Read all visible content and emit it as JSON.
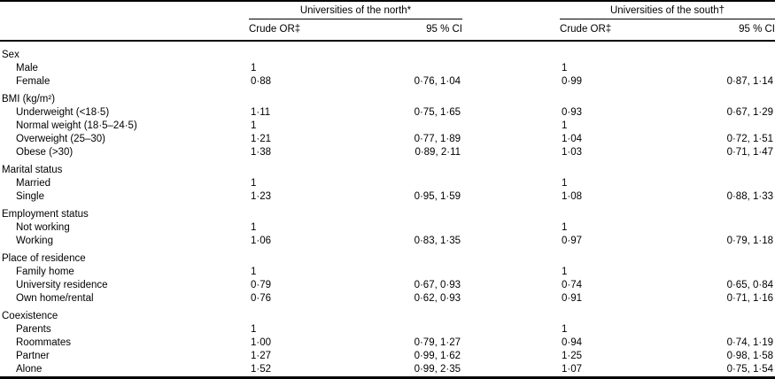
{
  "table": {
    "groups": [
      {
        "label": "Universities of the north*",
        "subheaders": [
          "Crude OR‡",
          "95 % CI"
        ]
      },
      {
        "label": "Universities of the south†",
        "subheaders": [
          "Crude OR‡",
          "95 % CI"
        ]
      }
    ],
    "rows": [
      {
        "label": "Sex",
        "section": true,
        "indent": false,
        "cells": [
          "",
          "",
          "",
          ""
        ]
      },
      {
        "label": "Male",
        "section": false,
        "indent": true,
        "cells": [
          "1",
          "",
          "1",
          ""
        ]
      },
      {
        "label": "Female",
        "section": false,
        "indent": true,
        "cells": [
          "0·88",
          "0·76, 1·04",
          "0·99",
          "0·87, 1·14"
        ]
      },
      {
        "label": "BMI (kg/m²)",
        "section": true,
        "indent": false,
        "cells": [
          "",
          "",
          "",
          ""
        ]
      },
      {
        "label": "Underweight (<18·5)",
        "section": false,
        "indent": true,
        "cells": [
          "1·11",
          "0·75, 1·65",
          "0·93",
          "0·67, 1·29"
        ]
      },
      {
        "label": "Normal weight (18·5–24·5)",
        "section": false,
        "indent": true,
        "cells": [
          "1",
          "",
          "1",
          ""
        ]
      },
      {
        "label": "Overweight (25–30)",
        "section": false,
        "indent": true,
        "cells": [
          "1·21",
          "0·77, 1·89",
          "1·04",
          "0·72, 1·51"
        ]
      },
      {
        "label": "Obese (>30)",
        "section": false,
        "indent": true,
        "cells": [
          "1·38",
          "0·89, 2·11",
          "1·03",
          "0·71, 1·47"
        ]
      },
      {
        "label": "Marital status",
        "section": true,
        "indent": false,
        "cells": [
          "",
          "",
          "",
          ""
        ]
      },
      {
        "label": "Married",
        "section": false,
        "indent": true,
        "cells": [
          "1",
          "",
          "1",
          ""
        ]
      },
      {
        "label": "Single",
        "section": false,
        "indent": true,
        "cells": [
          "1·23",
          "0·95, 1·59",
          "1·08",
          "0·88, 1·33"
        ]
      },
      {
        "label": "Employment status",
        "section": true,
        "indent": false,
        "cells": [
          "",
          "",
          "",
          ""
        ]
      },
      {
        "label": "Not working",
        "section": false,
        "indent": true,
        "cells": [
          "1",
          "",
          "1",
          ""
        ]
      },
      {
        "label": "Working",
        "section": false,
        "indent": true,
        "cells": [
          "1·06",
          "0·83, 1·35",
          "0·97",
          "0·79, 1·18"
        ]
      },
      {
        "label": "Place of residence",
        "section": true,
        "indent": false,
        "cells": [
          "",
          "",
          "",
          ""
        ]
      },
      {
        "label": "Family home",
        "section": false,
        "indent": true,
        "cells": [
          "1",
          "",
          "1",
          ""
        ]
      },
      {
        "label": "University residence",
        "section": false,
        "indent": true,
        "cells": [
          "0·79",
          "0·67, 0·93",
          "0·74",
          "0·65, 0·84"
        ]
      },
      {
        "label": "Own home/rental",
        "section": false,
        "indent": true,
        "cells": [
          "0·76",
          "0·62, 0·93",
          "0·91",
          "0·71, 1·16"
        ]
      },
      {
        "label": "Coexistence",
        "section": true,
        "indent": false,
        "cells": [
          "",
          "",
          "",
          ""
        ]
      },
      {
        "label": "Parents",
        "section": false,
        "indent": true,
        "cells": [
          "1",
          "",
          "1",
          ""
        ]
      },
      {
        "label": "Roommates",
        "section": false,
        "indent": true,
        "cells": [
          "1·00",
          "0·79, 1·27",
          "0·94",
          "0·74, 1·19"
        ]
      },
      {
        "label": "Partner",
        "section": false,
        "indent": true,
        "cells": [
          "1·27",
          "0·99, 1·62",
          "1·25",
          "0·98, 1·58"
        ]
      },
      {
        "label": "Alone",
        "section": false,
        "indent": true,
        "cells": [
          "1·52",
          "0·99, 2·35",
          "1·07",
          "0·75, 1·54"
        ]
      }
    ]
  }
}
